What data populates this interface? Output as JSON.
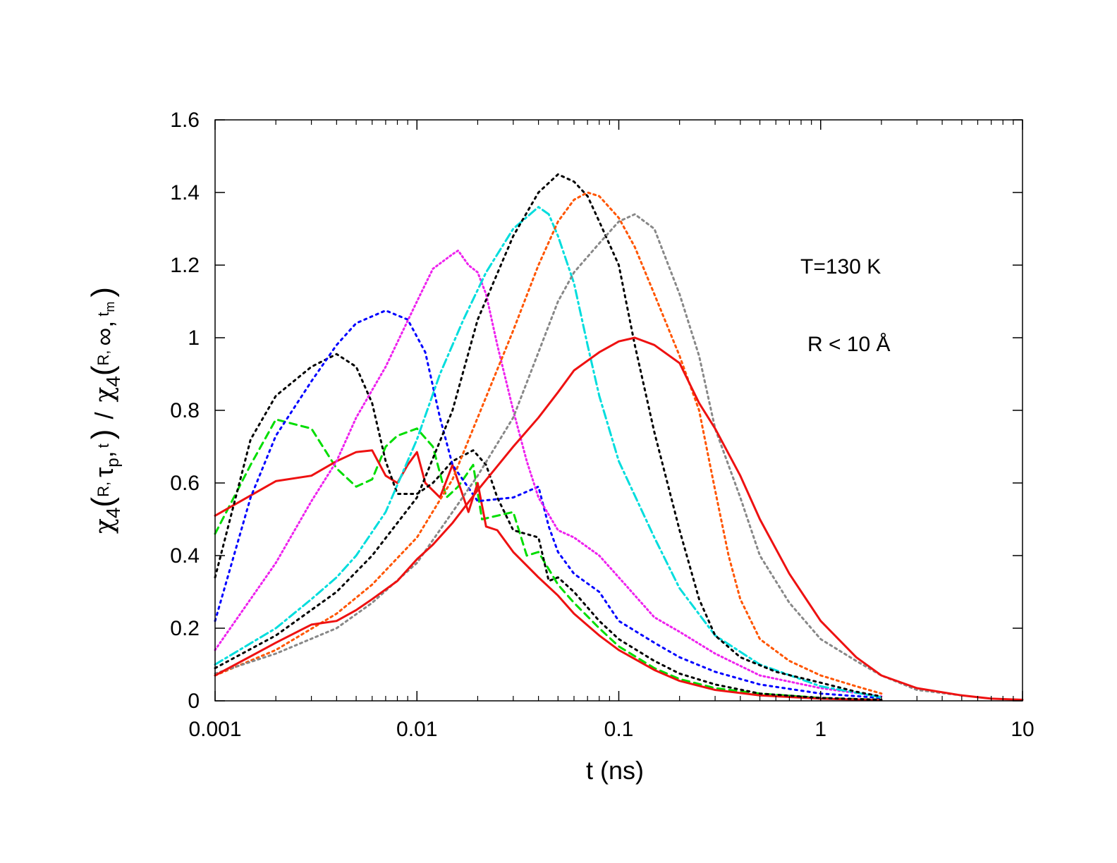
{
  "chart_data": {
    "type": "line",
    "title": "",
    "xlabel": "t (ns)",
    "x_scale": "log",
    "xlim": [
      0.001,
      10
    ],
    "ylim": [
      0,
      1.6
    ],
    "x_ticks": [
      "0.001",
      "0.01",
      "0.1",
      "1",
      "10"
    ],
    "x_tick_values": [
      0.001,
      0.01,
      0.1,
      1,
      10
    ],
    "y_ticks": [
      "0",
      "0.2",
      "0.4",
      "0.6",
      "0.8",
      "1",
      "1.2",
      "1.4",
      "1.6"
    ],
    "y_tick_values": [
      0,
      0.2,
      0.4,
      0.6,
      0.8,
      1,
      1.2,
      1.4,
      1.6
    ],
    "ylabel": {
      "chi": "χ",
      "four": "4",
      "open": "(",
      "close": ")",
      "slash": "/",
      "num_R": "R,",
      "num_tau": "τ",
      "num_p": "p",
      "num_comma": ",",
      "num_t": "t",
      "den_R": "R,",
      "den_inf": "∞,",
      "den_t": "t",
      "den_m": "m"
    },
    "annotations": {
      "temperature": "T=130 K",
      "range": "R < 10 Å"
    },
    "series": [
      {
        "name": "green dashed",
        "color": "#00dd00",
        "dash": "10,7",
        "points": [
          [
            0.001,
            0.46
          ],
          [
            0.0015,
            0.65
          ],
          [
            0.002,
            0.775
          ],
          [
            0.003,
            0.75
          ],
          [
            0.004,
            0.64
          ],
          [
            0.005,
            0.59
          ],
          [
            0.006,
            0.61
          ],
          [
            0.007,
            0.7
          ],
          [
            0.008,
            0.73
          ],
          [
            0.01,
            0.75
          ],
          [
            0.012,
            0.7
          ],
          [
            0.014,
            0.56
          ],
          [
            0.016,
            0.59
          ],
          [
            0.019,
            0.65
          ],
          [
            0.021,
            0.5
          ],
          [
            0.025,
            0.51
          ],
          [
            0.03,
            0.52
          ],
          [
            0.035,
            0.4
          ],
          [
            0.04,
            0.41
          ],
          [
            0.05,
            0.32
          ],
          [
            0.06,
            0.27
          ],
          [
            0.08,
            0.2
          ],
          [
            0.1,
            0.15
          ],
          [
            0.15,
            0.09
          ],
          [
            0.2,
            0.06
          ],
          [
            0.3,
            0.035
          ],
          [
            0.5,
            0.02
          ],
          [
            1,
            0.008
          ],
          [
            2,
            0.003
          ]
        ]
      },
      {
        "name": "red solid short",
        "color": "#ee1111",
        "dash": "",
        "points": [
          [
            0.001,
            0.51
          ],
          [
            0.002,
            0.605
          ],
          [
            0.003,
            0.62
          ],
          [
            0.004,
            0.66
          ],
          [
            0.005,
            0.685
          ],
          [
            0.006,
            0.69
          ],
          [
            0.007,
            0.62
          ],
          [
            0.008,
            0.6
          ],
          [
            0.009,
            0.65
          ],
          [
            0.01,
            0.685
          ],
          [
            0.011,
            0.6
          ],
          [
            0.013,
            0.56
          ],
          [
            0.015,
            0.65
          ],
          [
            0.018,
            0.52
          ],
          [
            0.02,
            0.6
          ],
          [
            0.022,
            0.48
          ],
          [
            0.025,
            0.47
          ],
          [
            0.03,
            0.41
          ],
          [
            0.04,
            0.34
          ],
          [
            0.05,
            0.29
          ],
          [
            0.06,
            0.24
          ],
          [
            0.08,
            0.18
          ],
          [
            0.1,
            0.14
          ],
          [
            0.15,
            0.085
          ],
          [
            0.2,
            0.055
          ],
          [
            0.3,
            0.03
          ],
          [
            0.5,
            0.015
          ],
          [
            1,
            0.006
          ],
          [
            2,
            0.002
          ]
        ]
      },
      {
        "name": "black dotted a",
        "color": "#000000",
        "dash": "3,6",
        "points": [
          [
            0.001,
            0.34
          ],
          [
            0.0015,
            0.72
          ],
          [
            0.002,
            0.84
          ],
          [
            0.003,
            0.92
          ],
          [
            0.004,
            0.955
          ],
          [
            0.005,
            0.92
          ],
          [
            0.006,
            0.82
          ],
          [
            0.007,
            0.66
          ],
          [
            0.008,
            0.57
          ],
          [
            0.01,
            0.57
          ],
          [
            0.012,
            0.6
          ],
          [
            0.015,
            0.66
          ],
          [
            0.019,
            0.69
          ],
          [
            0.022,
            0.65
          ],
          [
            0.025,
            0.56
          ],
          [
            0.03,
            0.47
          ],
          [
            0.04,
            0.45
          ],
          [
            0.045,
            0.33
          ],
          [
            0.05,
            0.34
          ],
          [
            0.06,
            0.3
          ],
          [
            0.08,
            0.22
          ],
          [
            0.1,
            0.17
          ],
          [
            0.15,
            0.11
          ],
          [
            0.2,
            0.075
          ],
          [
            0.3,
            0.045
          ],
          [
            0.5,
            0.02
          ],
          [
            1,
            0.008
          ],
          [
            2,
            0.003
          ]
        ]
      },
      {
        "name": "blue dotted",
        "color": "#0000ff",
        "dash": "3,6",
        "points": [
          [
            0.001,
            0.22
          ],
          [
            0.0015,
            0.56
          ],
          [
            0.002,
            0.73
          ],
          [
            0.003,
            0.88
          ],
          [
            0.004,
            0.98
          ],
          [
            0.005,
            1.04
          ],
          [
            0.007,
            1.075
          ],
          [
            0.009,
            1.05
          ],
          [
            0.011,
            0.96
          ],
          [
            0.013,
            0.78
          ],
          [
            0.015,
            0.65
          ],
          [
            0.02,
            0.55
          ],
          [
            0.03,
            0.56
          ],
          [
            0.04,
            0.59
          ],
          [
            0.045,
            0.48
          ],
          [
            0.05,
            0.41
          ],
          [
            0.06,
            0.35
          ],
          [
            0.08,
            0.3
          ],
          [
            0.1,
            0.22
          ],
          [
            0.15,
            0.16
          ],
          [
            0.2,
            0.12
          ],
          [
            0.3,
            0.08
          ],
          [
            0.5,
            0.045
          ],
          [
            1,
            0.02
          ],
          [
            2,
            0.008
          ]
        ]
      },
      {
        "name": "magenta dotted",
        "color": "#ee22ee",
        "dash": "2,4",
        "points": [
          [
            0.001,
            0.14
          ],
          [
            0.002,
            0.38
          ],
          [
            0.003,
            0.55
          ],
          [
            0.004,
            0.66
          ],
          [
            0.005,
            0.78
          ],
          [
            0.007,
            0.92
          ],
          [
            0.01,
            1.1
          ],
          [
            0.012,
            1.19
          ],
          [
            0.015,
            1.23
          ],
          [
            0.016,
            1.24
          ],
          [
            0.018,
            1.2
          ],
          [
            0.02,
            1.18
          ],
          [
            0.022,
            1.12
          ],
          [
            0.025,
            0.98
          ],
          [
            0.03,
            0.8
          ],
          [
            0.035,
            0.66
          ],
          [
            0.04,
            0.56
          ],
          [
            0.05,
            0.47
          ],
          [
            0.06,
            0.45
          ],
          [
            0.08,
            0.4
          ],
          [
            0.1,
            0.34
          ],
          [
            0.15,
            0.23
          ],
          [
            0.2,
            0.19
          ],
          [
            0.3,
            0.13
          ],
          [
            0.5,
            0.07
          ],
          [
            1,
            0.035
          ],
          [
            2,
            0.012
          ]
        ]
      },
      {
        "name": "cyan dash-dot",
        "color": "#00dddd",
        "dash": "12,5,3,5",
        "points": [
          [
            0.001,
            0.1
          ],
          [
            0.002,
            0.2
          ],
          [
            0.003,
            0.28
          ],
          [
            0.004,
            0.34
          ],
          [
            0.005,
            0.4
          ],
          [
            0.007,
            0.52
          ],
          [
            0.01,
            0.72
          ],
          [
            0.013,
            0.9
          ],
          [
            0.017,
            1.05
          ],
          [
            0.022,
            1.18
          ],
          [
            0.03,
            1.3
          ],
          [
            0.04,
            1.36
          ],
          [
            0.045,
            1.34
          ],
          [
            0.05,
            1.28
          ],
          [
            0.06,
            1.15
          ],
          [
            0.07,
            0.98
          ],
          [
            0.08,
            0.84
          ],
          [
            0.1,
            0.66
          ],
          [
            0.15,
            0.45
          ],
          [
            0.2,
            0.31
          ],
          [
            0.3,
            0.18
          ],
          [
            0.5,
            0.1
          ],
          [
            1,
            0.04
          ],
          [
            2,
            0.01
          ]
        ]
      },
      {
        "name": "black dotted b",
        "color": "#000000",
        "dash": "3,6",
        "points": [
          [
            0.001,
            0.09
          ],
          [
            0.002,
            0.18
          ],
          [
            0.004,
            0.3
          ],
          [
            0.006,
            0.4
          ],
          [
            0.01,
            0.56
          ],
          [
            0.015,
            0.8
          ],
          [
            0.02,
            1.05
          ],
          [
            0.03,
            1.28
          ],
          [
            0.04,
            1.4
          ],
          [
            0.05,
            1.45
          ],
          [
            0.06,
            1.43
          ],
          [
            0.07,
            1.39
          ],
          [
            0.08,
            1.32
          ],
          [
            0.1,
            1.2
          ],
          [
            0.12,
            0.98
          ],
          [
            0.15,
            0.74
          ],
          [
            0.2,
            0.47
          ],
          [
            0.25,
            0.28
          ],
          [
            0.3,
            0.18
          ],
          [
            0.4,
            0.12
          ],
          [
            0.6,
            0.08
          ],
          [
            1,
            0.05
          ],
          [
            1.5,
            0.025
          ],
          [
            2,
            0.012
          ]
        ]
      },
      {
        "name": "orange dotted",
        "color": "#ff5500",
        "dash": "3,5",
        "points": [
          [
            0.001,
            0.07
          ],
          [
            0.002,
            0.14
          ],
          [
            0.004,
            0.24
          ],
          [
            0.006,
            0.32
          ],
          [
            0.01,
            0.45
          ],
          [
            0.015,
            0.61
          ],
          [
            0.02,
            0.78
          ],
          [
            0.03,
            1.02
          ],
          [
            0.04,
            1.2
          ],
          [
            0.05,
            1.32
          ],
          [
            0.06,
            1.38
          ],
          [
            0.07,
            1.4
          ],
          [
            0.08,
            1.39
          ],
          [
            0.1,
            1.33
          ],
          [
            0.12,
            1.25
          ],
          [
            0.15,
            1.12
          ],
          [
            0.2,
            0.95
          ],
          [
            0.25,
            0.8
          ],
          [
            0.3,
            0.58
          ],
          [
            0.35,
            0.4
          ],
          [
            0.4,
            0.28
          ],
          [
            0.5,
            0.17
          ],
          [
            0.7,
            0.11
          ],
          [
            1,
            0.07
          ],
          [
            1.5,
            0.04
          ],
          [
            2,
            0.02
          ]
        ]
      },
      {
        "name": "gray dotted",
        "color": "#888888",
        "dash": "3,5",
        "points": [
          [
            0.001,
            0.075
          ],
          [
            0.002,
            0.13
          ],
          [
            0.004,
            0.2
          ],
          [
            0.006,
            0.27
          ],
          [
            0.01,
            0.38
          ],
          [
            0.015,
            0.52
          ],
          [
            0.02,
            0.62
          ],
          [
            0.03,
            0.78
          ],
          [
            0.04,
            0.96
          ],
          [
            0.05,
            1.1
          ],
          [
            0.06,
            1.18
          ],
          [
            0.08,
            1.26
          ],
          [
            0.1,
            1.32
          ],
          [
            0.12,
            1.34
          ],
          [
            0.15,
            1.3
          ],
          [
            0.2,
            1.12
          ],
          [
            0.25,
            0.95
          ],
          [
            0.3,
            0.75
          ],
          [
            0.4,
            0.56
          ],
          [
            0.5,
            0.4
          ],
          [
            0.7,
            0.27
          ],
          [
            1,
            0.17
          ],
          [
            1.5,
            0.11
          ],
          [
            2,
            0.07
          ],
          [
            3,
            0.03
          ],
          [
            5,
            0.015
          ]
        ]
      },
      {
        "name": "red solid long",
        "color": "#ee1111",
        "dash": "",
        "points": [
          [
            0.001,
            0.07
          ],
          [
            0.002,
            0.16
          ],
          [
            0.003,
            0.21
          ],
          [
            0.004,
            0.22
          ],
          [
            0.005,
            0.25
          ],
          [
            0.006,
            0.28
          ],
          [
            0.008,
            0.33
          ],
          [
            0.01,
            0.39
          ],
          [
            0.012,
            0.43
          ],
          [
            0.015,
            0.49
          ],
          [
            0.02,
            0.58
          ],
          [
            0.03,
            0.7
          ],
          [
            0.04,
            0.78
          ],
          [
            0.05,
            0.85
          ],
          [
            0.06,
            0.91
          ],
          [
            0.08,
            0.96
          ],
          [
            0.1,
            0.99
          ],
          [
            0.12,
            1.0
          ],
          [
            0.15,
            0.98
          ],
          [
            0.2,
            0.93
          ],
          [
            0.25,
            0.82
          ],
          [
            0.3,
            0.75
          ],
          [
            0.4,
            0.62
          ],
          [
            0.5,
            0.5
          ],
          [
            0.7,
            0.35
          ],
          [
            1,
            0.22
          ],
          [
            1.5,
            0.12
          ],
          [
            2,
            0.07
          ],
          [
            3,
            0.035
          ],
          [
            5,
            0.015
          ],
          [
            7,
            0.006
          ],
          [
            10,
            0.003
          ]
        ]
      }
    ]
  }
}
